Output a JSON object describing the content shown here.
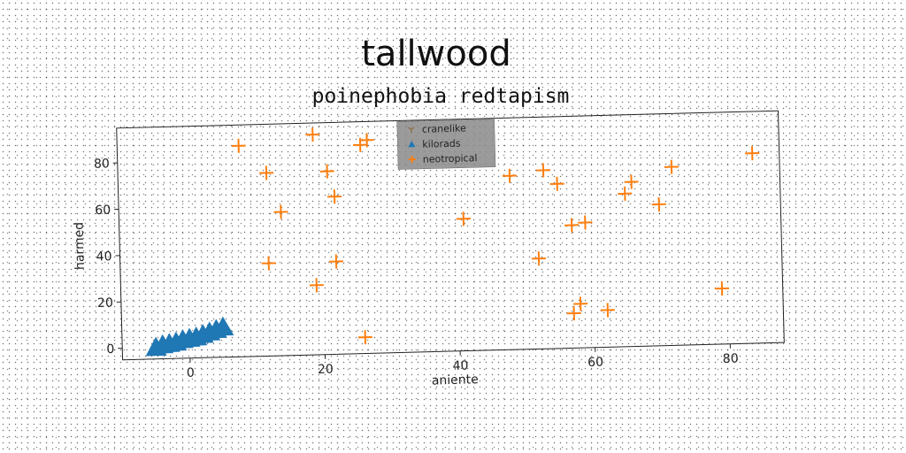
{
  "chart_data": {
    "type": "scatter",
    "title": "tallwood",
    "subtitle": "poinephobia redtapism",
    "xlabel": "aniente",
    "ylabel": "harmed",
    "xlim": [
      -10,
      88
    ],
    "ylim": [
      -5,
      95
    ],
    "xticks": [
      0,
      20,
      40,
      60,
      80
    ],
    "yticks": [
      0,
      20,
      40,
      60,
      80
    ],
    "grid": false,
    "legend_position": "top-center",
    "series": [
      {
        "name": "cranelike",
        "marker": "tri_down",
        "color": "#8c6d3f",
        "points": []
      },
      {
        "name": "kilorads",
        "marker": "triangle_up",
        "color": "#1f77b4",
        "points": [
          {
            "x": -5,
            "y": 0
          },
          {
            "x": -4,
            "y": 1
          },
          {
            "x": -3,
            "y": 1.5
          },
          {
            "x": -2,
            "y": 2
          },
          {
            "x": -1,
            "y": 3
          },
          {
            "x": 0,
            "y": 3.5
          },
          {
            "x": 1,
            "y": 4
          },
          {
            "x": 2,
            "y": 5
          },
          {
            "x": 3,
            "y": 6
          },
          {
            "x": 4,
            "y": 7
          },
          {
            "x": 5,
            "y": 8
          }
        ]
      },
      {
        "name": "neotropical",
        "marker": "plus",
        "color": "#ff7f0e",
        "points": [
          {
            "x": 8,
            "y": 86
          },
          {
            "x": 19,
            "y": 90
          },
          {
            "x": 26,
            "y": 85
          },
          {
            "x": 27,
            "y": 87
          },
          {
            "x": 12,
            "y": 74
          },
          {
            "x": 21,
            "y": 74
          },
          {
            "x": 22,
            "y": 63
          },
          {
            "x": 14,
            "y": 57
          },
          {
            "x": 12,
            "y": 35
          },
          {
            "x": 22,
            "y": 35
          },
          {
            "x": 19,
            "y": 25
          },
          {
            "x": 26,
            "y": 2
          },
          {
            "x": 41,
            "y": 52
          },
          {
            "x": 48,
            "y": 70
          },
          {
            "x": 53,
            "y": 72
          },
          {
            "x": 55,
            "y": 66
          },
          {
            "x": 57,
            "y": 48
          },
          {
            "x": 59,
            "y": 49
          },
          {
            "x": 52,
            "y": 34
          },
          {
            "x": 57,
            "y": 10
          },
          {
            "x": 58,
            "y": 14
          },
          {
            "x": 62,
            "y": 11
          },
          {
            "x": 65,
            "y": 61
          },
          {
            "x": 66,
            "y": 66
          },
          {
            "x": 70,
            "y": 56
          },
          {
            "x": 72,
            "y": 72
          },
          {
            "x": 79,
            "y": 19
          },
          {
            "x": 84,
            "y": 77
          }
        ]
      }
    ]
  }
}
